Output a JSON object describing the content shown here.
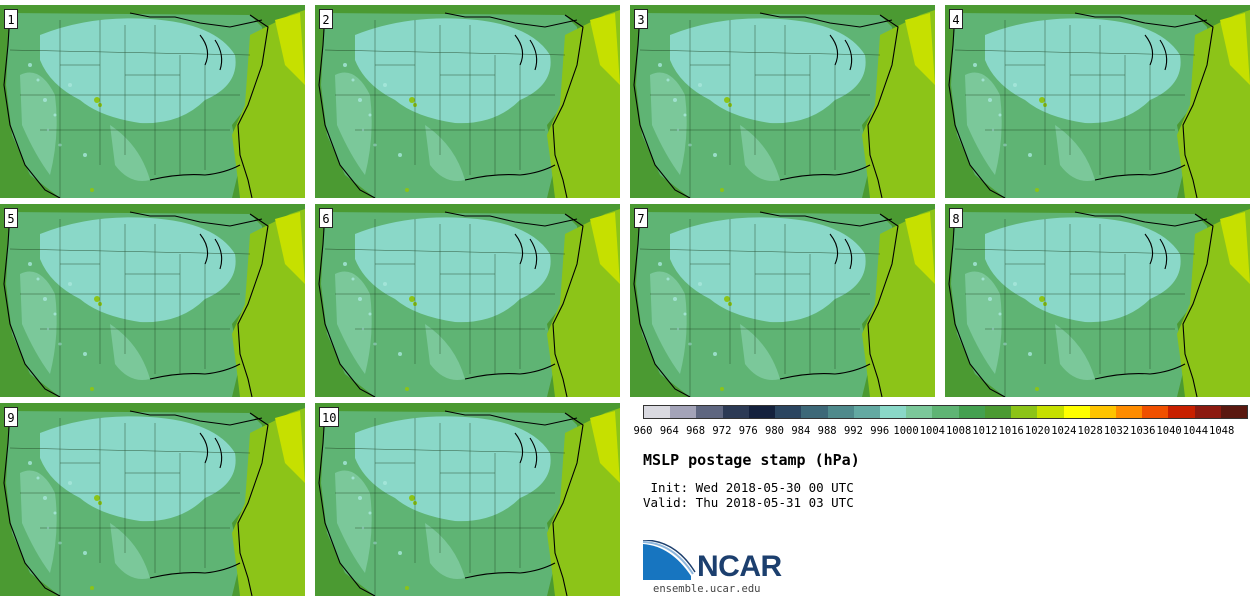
{
  "panels": [
    {
      "label": "1"
    },
    {
      "label": "2"
    },
    {
      "label": "3"
    },
    {
      "label": "4"
    },
    {
      "label": "5"
    },
    {
      "label": "6"
    },
    {
      "label": "7"
    },
    {
      "label": "8"
    },
    {
      "label": "9"
    },
    {
      "label": "10"
    }
  ],
  "colorbar": {
    "ticks": [
      "960",
      "964",
      "968",
      "972",
      "976",
      "980",
      "984",
      "988",
      "992",
      "996",
      "1000",
      "1004",
      "1008",
      "1012",
      "1016",
      "1020",
      "1024",
      "1028",
      "1032",
      "1036",
      "1040",
      "1044",
      "1048"
    ],
    "colors": [
      "#d9d9e0",
      "#a3a3b8",
      "#5e6680",
      "#2c3a55",
      "#14213d",
      "#2b4560",
      "#3d6878",
      "#4f8a8c",
      "#63a9a2",
      "#8ad8c8",
      "#7bc89a",
      "#5fb474",
      "#44a050",
      "#4b9a32",
      "#8cc418",
      "#c6e000",
      "#ffff00",
      "#ffc400",
      "#ff8c00",
      "#f05000",
      "#c82000",
      "#8c1a10",
      "#5a1810"
    ]
  },
  "title": "MSLP postage stamp (hPa)",
  "init": " Init: Wed 2018-05-30 00 UTC",
  "valid": "Valid: Thu 2018-05-31 03 UTC",
  "logo": {
    "text": "NCAR",
    "url": "ensemble.ucar.edu"
  }
}
